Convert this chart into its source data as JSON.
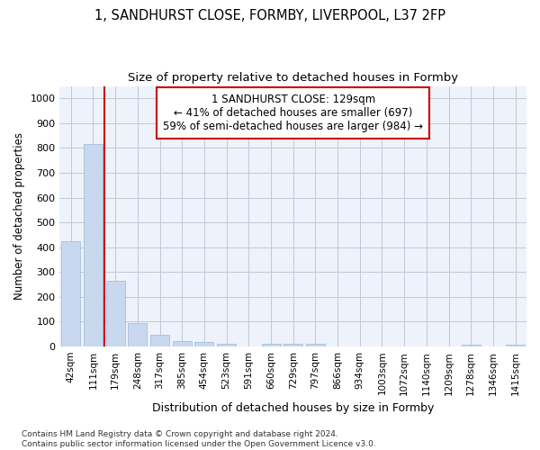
{
  "title_line1": "1, SANDHURST CLOSE, FORMBY, LIVERPOOL, L37 2FP",
  "title_line2": "Size of property relative to detached houses in Formby",
  "xlabel": "Distribution of detached houses by size in Formby",
  "ylabel": "Number of detached properties",
  "bar_color": "#c8d8ee",
  "bar_edge_color": "#9ab8d8",
  "grid_color": "#c0c8d8",
  "background_color": "#edf2fb",
  "property_line_color": "#cc0000",
  "annotation_text": "1 SANDHURST CLOSE: 129sqm\n← 41% of detached houses are smaller (697)\n59% of semi-detached houses are larger (984) →",
  "annotation_box_color": "#ffffff",
  "annotation_box_edge": "#cc0000",
  "categories": [
    "42sqm",
    "111sqm",
    "179sqm",
    "248sqm",
    "317sqm",
    "385sqm",
    "454sqm",
    "523sqm",
    "591sqm",
    "660sqm",
    "729sqm",
    "797sqm",
    "866sqm",
    "934sqm",
    "1003sqm",
    "1072sqm",
    "1140sqm",
    "1209sqm",
    "1278sqm",
    "1346sqm",
    "1415sqm"
  ],
  "values": [
    425,
    815,
    265,
    93,
    48,
    22,
    17,
    12,
    0,
    11,
    12,
    11,
    0,
    0,
    0,
    0,
    0,
    0,
    8,
    0,
    8
  ],
  "ylim": [
    0,
    1050
  ],
  "yticks": [
    0,
    100,
    200,
    300,
    400,
    500,
    600,
    700,
    800,
    900,
    1000
  ],
  "footnote": "Contains HM Land Registry data © Crown copyright and database right 2024.\nContains public sector information licensed under the Open Government Licence v3.0.",
  "title_fontsize": 10.5,
  "subtitle_fontsize": 9.5,
  "tick_fontsize": 7.5,
  "ylabel_fontsize": 8.5,
  "xlabel_fontsize": 9,
  "annotation_fontsize": 8.5,
  "footnote_fontsize": 6.5
}
